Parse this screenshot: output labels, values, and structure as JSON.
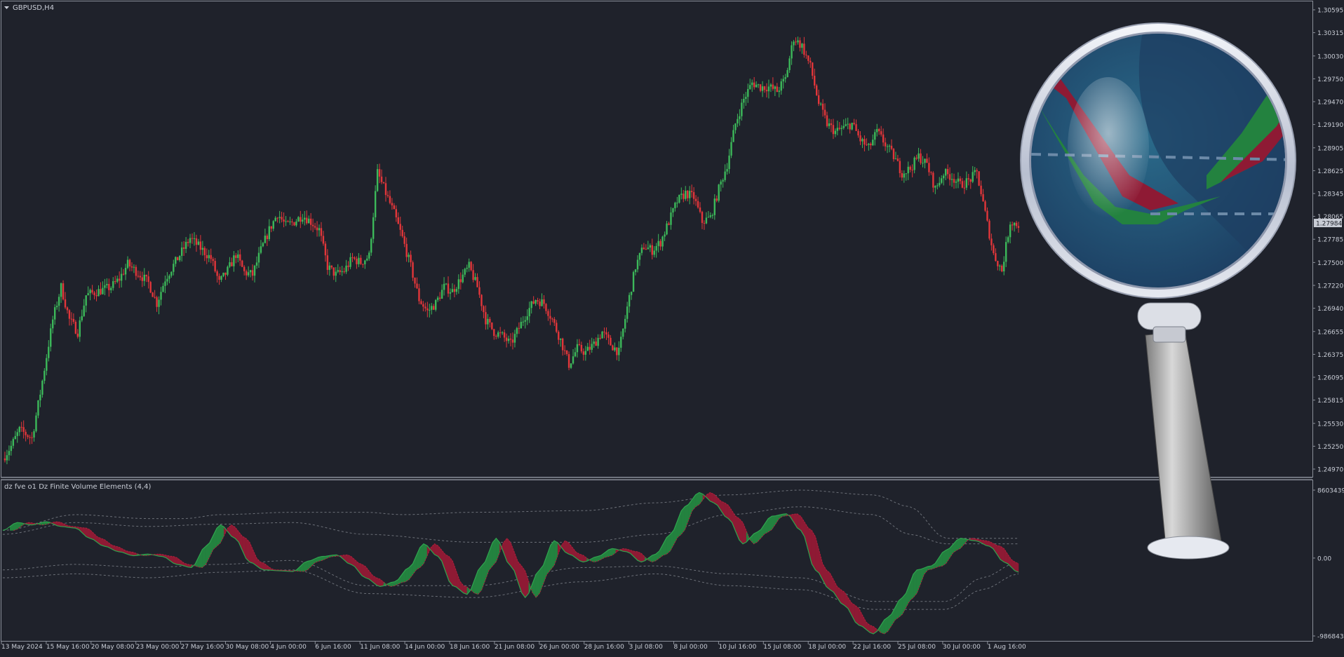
{
  "symbol_title": "GBPUSD,H4",
  "indicator_title": "dz fve o1 Dz Finite Volume Elements (4,4)",
  "colors": {
    "background": "#1f222b",
    "bull": "#3cb95a",
    "bear": "#e2363a",
    "axis_text": "#c9cdd6",
    "grid_border": "#8a8f99",
    "fve_green": "#23823f",
    "fve_red": "#8e1a34",
    "band_line": "#6c7078",
    "price_tag_bg": "#c9cdd6"
  },
  "chart_data": [
    {
      "type": "candlestick",
      "title": "GBPUSD,H4",
      "y_ticks": [
        "1.30595",
        "1.30315",
        "1.30030",
        "1.29750",
        "1.29470",
        "1.29190",
        "1.28905",
        "1.28625",
        "1.28345",
        "1.28065",
        "1.27785",
        "1.27500",
        "1.27220",
        "1.26940",
        "1.26655",
        "1.26375",
        "1.26095",
        "1.25815",
        "1.25530",
        "1.25250",
        "1.24970"
      ],
      "ylim": [
        1.2497,
        1.30595
      ],
      "current_price": "1.27984",
      "x_ticks": [
        "13 May 2024",
        "15 May 16:00",
        "20 May 08:00",
        "23 May 00:00",
        "27 May 16:00",
        "30 May 08:00",
        "4 Jun 00:00",
        "6 Jun 16:00",
        "11 Jun 08:00",
        "14 Jun 00:00",
        "18 Jun 16:00",
        "21 Jun 08:00",
        "26 Jun 00:00",
        "28 Jun 16:00",
        "3 Jul 08:00",
        "8 Jul 00:00",
        "10 Jul 16:00",
        "15 Jul 08:00",
        "18 Jul 00:00",
        "22 Jul 16:00",
        "25 Jul 08:00",
        "30 Jul 00:00",
        "1 Aug 16:00"
      ],
      "close_path": [
        [
          0,
          1.251
        ],
        [
          4,
          1.2525
        ],
        [
          8,
          1.2545
        ],
        [
          14,
          1.2535
        ],
        [
          18,
          1.259
        ],
        [
          24,
          1.268
        ],
        [
          28,
          1.272
        ],
        [
          32,
          1.268
        ],
        [
          36,
          1.2665
        ],
        [
          40,
          1.271
        ],
        [
          46,
          1.2715
        ],
        [
          52,
          1.272
        ],
        [
          56,
          1.273
        ],
        [
          60,
          1.2748
        ],
        [
          66,
          1.2735
        ],
        [
          70,
          1.2725
        ],
        [
          74,
          1.27
        ],
        [
          78,
          1.273
        ],
        [
          84,
          1.2755
        ],
        [
          90,
          1.278
        ],
        [
          96,
          1.2765
        ],
        [
          100,
          1.2755
        ],
        [
          104,
          1.2725
        ],
        [
          108,
          1.274
        ],
        [
          112,
          1.276
        ],
        [
          116,
          1.2738
        ],
        [
          120,
          1.2735
        ],
        [
          124,
          1.2765
        ],
        [
          128,
          1.279
        ],
        [
          132,
          1.281
        ],
        [
          136,
          1.2795
        ],
        [
          140,
          1.28
        ],
        [
          144,
          1.2808
        ],
        [
          148,
          1.28
        ],
        [
          152,
          1.279
        ],
        [
          156,
          1.2745
        ],
        [
          160,
          1.2735
        ],
        [
          164,
          1.274
        ],
        [
          168,
          1.2755
        ],
        [
          172,
          1.275
        ],
        [
          176,
          1.2758
        ],
        [
          180,
          1.286
        ],
        [
          184,
          1.2835
        ],
        [
          188,
          1.281
        ],
        [
          192,
          1.278
        ],
        [
          196,
          1.2745
        ],
        [
          200,
          1.2705
        ],
        [
          204,
          1.269
        ],
        [
          208,
          1.27
        ],
        [
          212,
          1.272
        ],
        [
          216,
          1.2715
        ],
        [
          220,
          1.273
        ],
        [
          224,
          1.2745
        ],
        [
          228,
          1.272
        ],
        [
          232,
          1.268
        ],
        [
          236,
          1.2665
        ],
        [
          240,
          1.266
        ],
        [
          244,
          1.265
        ],
        [
          248,
          1.267
        ],
        [
          252,
          1.269
        ],
        [
          256,
          1.2705
        ],
        [
          260,
          1.27
        ],
        [
          264,
          1.268
        ],
        [
          268,
          1.2655
        ],
        [
          272,
          1.2625
        ],
        [
          276,
          1.2645
        ],
        [
          280,
          1.264
        ],
        [
          284,
          1.265
        ],
        [
          288,
          1.2665
        ],
        [
          292,
          1.265
        ],
        [
          296,
          1.264
        ],
        [
          300,
          1.2695
        ],
        [
          304,
          1.2745
        ],
        [
          308,
          1.277
        ],
        [
          312,
          1.2765
        ],
        [
          316,
          1.2775
        ],
        [
          320,
          1.28
        ],
        [
          324,
          1.2825
        ],
        [
          328,
          1.2835
        ],
        [
          332,
          1.283
        ],
        [
          336,
          1.28
        ],
        [
          340,
          1.2805
        ],
        [
          344,
          1.284
        ],
        [
          348,
          1.287
        ],
        [
          352,
          1.292
        ],
        [
          356,
          1.295
        ],
        [
          360,
          1.297
        ],
        [
          364,
          1.2965
        ],
        [
          368,
          1.2965
        ],
        [
          372,
          1.296
        ],
        [
          376,
          1.2975
        ],
        [
          380,
          1.3025
        ],
        [
          384,
          1.3015
        ],
        [
          388,
          1.299
        ],
        [
          392,
          1.2945
        ],
        [
          396,
          1.292
        ],
        [
          400,
          1.291
        ],
        [
          404,
          1.2915
        ],
        [
          408,
          1.292
        ],
        [
          412,
          1.29
        ],
        [
          416,
          1.289
        ],
        [
          420,
          1.291
        ],
        [
          424,
          1.2895
        ],
        [
          428,
          1.288
        ],
        [
          432,
          1.286
        ],
        [
          436,
          1.2865
        ],
        [
          440,
          1.288
        ],
        [
          444,
          1.287
        ],
        [
          448,
          1.284
        ],
        [
          452,
          1.286
        ],
        [
          456,
          1.2855
        ],
        [
          460,
          1.2845
        ],
        [
          464,
          1.285
        ],
        [
          468,
          1.286
        ],
        [
          472,
          1.281
        ],
        [
          476,
          1.276
        ],
        [
          480,
          1.274
        ],
        [
          484,
          1.28
        ],
        [
          488,
          1.2796
        ]
      ]
    },
    {
      "type": "line",
      "title": "dz fve o1 Dz Finite Volume Elements (4,4)",
      "y_ticks": [
        "8603439.5",
        "0.00",
        "-9868436.0"
      ],
      "ylim": [
        -9868436.0,
        8603439.5
      ],
      "series": [
        {
          "role": "fve_fast",
          "values": [
            [
              0,
              3500000.0
            ],
            [
              4,
              4500000.0
            ],
            [
              8,
              4200000.0
            ],
            [
              12,
              4600000.0
            ],
            [
              16,
              4000000.0
            ],
            [
              20,
              3800000.0
            ],
            [
              24,
              2500000.0
            ],
            [
              28,
              1500000.0
            ],
            [
              32,
              800000.0
            ],
            [
              36,
              300000.0
            ],
            [
              40,
              500000.0
            ],
            [
              44,
              200000.0
            ],
            [
              48,
              -800000.0
            ],
            [
              52,
              -1200000.0
            ],
            [
              56,
              1500000.0
            ],
            [
              60,
              4200000.0
            ],
            [
              64,
              2500000.0
            ],
            [
              68,
              -500000.0
            ],
            [
              72,
              -1500000.0
            ],
            [
              76,
              -1600000.0
            ],
            [
              80,
              -1700000.0
            ],
            [
              84,
              -400000.0
            ],
            [
              88,
              200000.0
            ],
            [
              92,
              400000.0
            ],
            [
              96,
              -800000.0
            ],
            [
              100,
              -2500000.0
            ],
            [
              104,
              -3600000.0
            ],
            [
              108,
              -3000000.0
            ],
            [
              112,
              -1200000.0
            ],
            [
              116,
              1800000.0
            ],
            [
              120,
              200000.0
            ],
            [
              124,
              -3500000.0
            ],
            [
              128,
              -4600000.0
            ],
            [
              132,
              -1000000.0
            ],
            [
              136,
              2500000.0
            ],
            [
              140,
              -1000000.0
            ],
            [
              144,
              -5000000.0
            ],
            [
              148,
              -1500000.0
            ],
            [
              152,
              2200000.0
            ],
            [
              156,
              500000.0
            ],
            [
              160,
              -500000.0
            ],
            [
              164,
              200000.0
            ],
            [
              168,
              1200000.0
            ],
            [
              172,
              800000.0
            ],
            [
              176,
              -500000.0
            ],
            [
              180,
              500000.0
            ],
            [
              184,
              3000000.0
            ],
            [
              188,
              6500000.0
            ],
            [
              192,
              8300000.0
            ],
            [
              196,
              7000000.0
            ],
            [
              200,
              5000000.0
            ],
            [
              204,
              1800000.0
            ],
            [
              208,
              3300000.0
            ],
            [
              212,
              5300000.0
            ],
            [
              216,
              5600000.0
            ],
            [
              220,
              3500000.0
            ],
            [
              224,
              -1500000.0
            ],
            [
              228,
              -4000000.0
            ],
            [
              232,
              -6000000.0
            ],
            [
              236,
              -8500000.0
            ],
            [
              240,
              -9600000.0
            ],
            [
              244,
              -7500000.0
            ],
            [
              248,
              -5000000.0
            ],
            [
              252,
              -1500000.0
            ],
            [
              256,
              -1000000.0
            ],
            [
              260,
              1000000.0
            ],
            [
              264,
              2500000.0
            ],
            [
              268,
              2200000.0
            ],
            [
              272,
              1500000.0
            ],
            [
              276,
              -500000.0
            ],
            [
              280,
              -1800000.0
            ]
          ]
        },
        {
          "role": "band_upper_outer",
          "values": [
            [
              0,
              3500000.0
            ],
            [
              20,
              5500000.0
            ],
            [
              40,
              5000000.0
            ],
            [
              50,
              5000000.0
            ],
            [
              60,
              5500000.0
            ],
            [
              80,
              5800000.0
            ],
            [
              100,
              5800000.0
            ],
            [
              110,
              5500000.0
            ],
            [
              130,
              5800000.0
            ],
            [
              160,
              6000000.0
            ],
            [
              180,
              7000000.0
            ],
            [
              200,
              8000000.0
            ],
            [
              220,
              8600000.0
            ],
            [
              240,
              8000000.0
            ],
            [
              250,
              6500000.0
            ],
            [
              260,
              2500000.0
            ],
            [
              280,
              2500000.0
            ]
          ]
        },
        {
          "role": "band_upper_inner",
          "values": [
            [
              0,
              3000000.0
            ],
            [
              20,
              4500000.0
            ],
            [
              40,
              4000000.0
            ],
            [
              60,
              4300000.0
            ],
            [
              80,
              4500000.0
            ],
            [
              100,
              3000000.0
            ],
            [
              130,
              2000000.0
            ],
            [
              160,
              2000000.0
            ],
            [
              180,
              3000000.0
            ],
            [
              200,
              5500000.0
            ],
            [
              220,
              6500000.0
            ],
            [
              240,
              5500000.0
            ],
            [
              250,
              3000000.0
            ],
            [
              260,
              1800000.0
            ],
            [
              280,
              1800000.0
            ]
          ]
        },
        {
          "role": "band_lower_inner",
          "values": [
            [
              0,
              -1500000.0
            ],
            [
              20,
              -800000.0
            ],
            [
              40,
              -1200000.0
            ],
            [
              60,
              -800000.0
            ],
            [
              80,
              -300000.0
            ],
            [
              100,
              -3500000.0
            ],
            [
              130,
              -3500000.0
            ],
            [
              160,
              -1200000.0
            ],
            [
              180,
              -1000000.0
            ],
            [
              200,
              -2000000.0
            ],
            [
              220,
              -2500000.0
            ],
            [
              240,
              -5500000.0
            ],
            [
              260,
              -5500000.0
            ],
            [
              270,
              -2500000.0
            ],
            [
              280,
              -500000.0
            ]
          ]
        },
        {
          "role": "band_lower_outer",
          "values": [
            [
              0,
              -2500000.0
            ],
            [
              20,
              -2000000.0
            ],
            [
              40,
              -2500000.0
            ],
            [
              60,
              -1800000.0
            ],
            [
              80,
              -1500000.0
            ],
            [
              100,
              -4500000.0
            ],
            [
              130,
              -5000000.0
            ],
            [
              160,
              -3000000.0
            ],
            [
              180,
              -2000000.0
            ],
            [
              200,
              -3500000.0
            ],
            [
              220,
              -4000000.0
            ],
            [
              240,
              -6500000.0
            ],
            [
              260,
              -6500000.0
            ],
            [
              270,
              -4000000.0
            ],
            [
              280,
              -2000000.0
            ]
          ]
        }
      ]
    }
  ]
}
